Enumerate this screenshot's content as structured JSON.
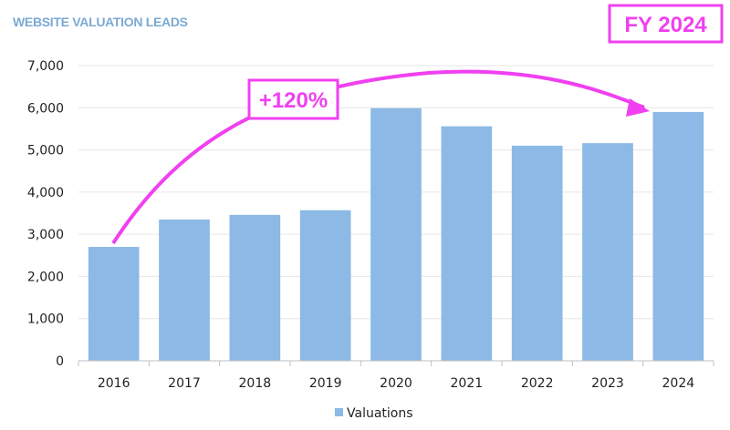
{
  "chart_data": {
    "type": "bar",
    "title": "WEBSITE VALUATION LEADS",
    "categories": [
      "2016",
      "2017",
      "2018",
      "2019",
      "2020",
      "2021",
      "2022",
      "2023",
      "2024"
    ],
    "series": [
      {
        "name": "Valuations",
        "values": [
          2700,
          3350,
          3460,
          3570,
          5990,
          5560,
          5100,
          5160,
          5900
        ]
      }
    ],
    "ylim": [
      0,
      7000
    ],
    "yticks": [
      0,
      1000,
      2000,
      3000,
      4000,
      5000,
      6000,
      7000
    ],
    "ytick_labels": [
      "0",
      "1,000",
      "2,000",
      "3,000",
      "4,000",
      "5,000",
      "6,000",
      "7,000"
    ],
    "grid": true,
    "legend": "bottom",
    "colors": {
      "bar": "#8cb9e5",
      "axis": "#bfbfbf",
      "grid": "#e6e6e6",
      "title": "#7aaad4",
      "annotation": "#f040f0"
    }
  },
  "annotations": {
    "period_label": "FY 2024",
    "growth_label": "+120%",
    "arrow_from": "2016",
    "arrow_to": "2024"
  }
}
